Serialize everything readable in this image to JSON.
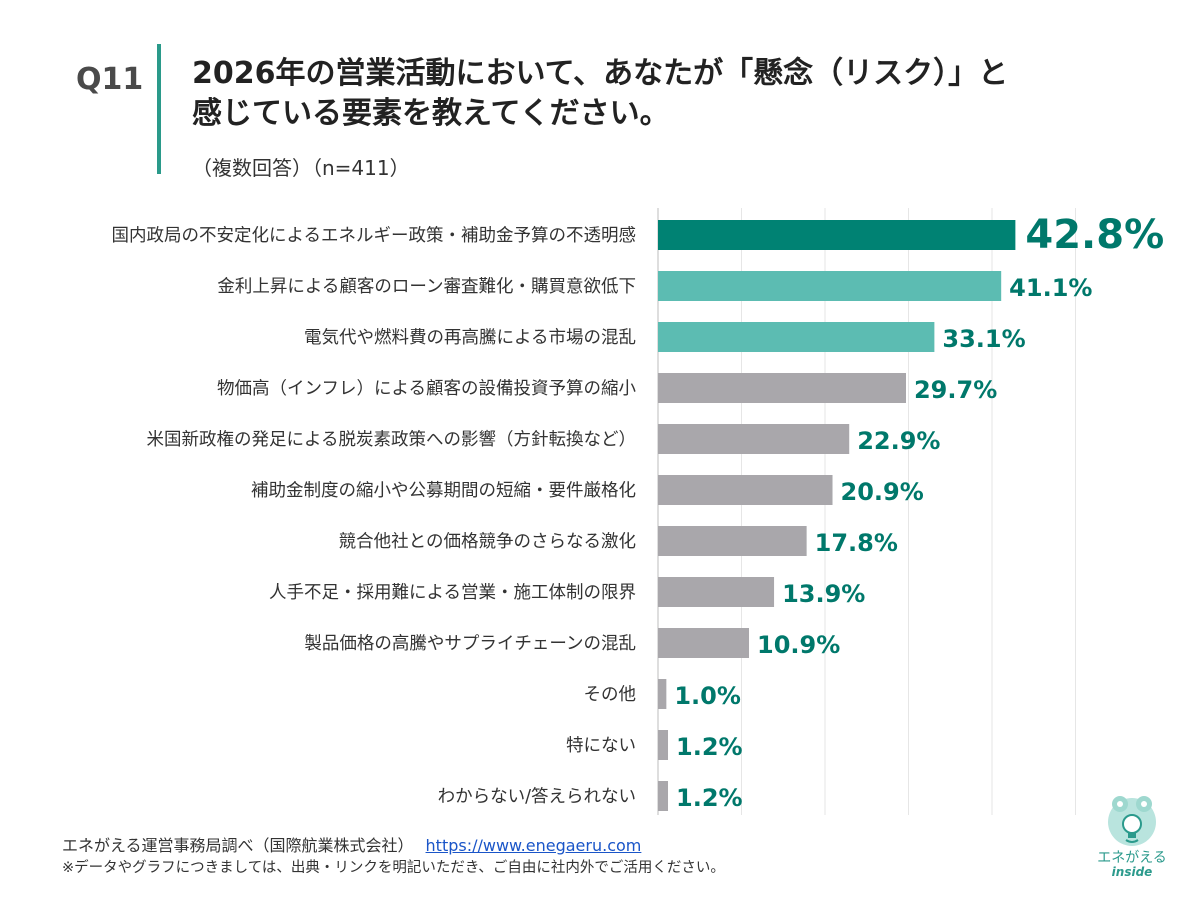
{
  "question": {
    "number": "Q11",
    "title_line1": "2026年の営業活動において、あなたが「懸念（リスク）」と",
    "title_line2": "感じている要素を教えてください。",
    "subtitle": "（複数回答）（n=411）"
  },
  "chart_data": {
    "type": "bar",
    "orientation": "horizontal",
    "unit": "%",
    "xlim": [
      0,
      50
    ],
    "grid": true,
    "categories": [
      "国内政局の不安定化によるエネルギー政策・補助金予算の不透明感",
      "金利上昇による顧客のローン審査難化・購買意欲低下",
      "電気代や燃料費の再高騰による市場の混乱",
      "物価高（インフレ）による顧客の設備投資予算の縮小",
      "米国新政権の発足による脱炭素政策への影響（方針転換など）",
      "補助金制度の縮小や公募期間の短縮・要件厳格化",
      "競合他社との価格競争のさらなる激化",
      "人手不足・採用難による営業・施工体制の限界",
      "製品価格の高騰やサプライチェーンの混乱",
      "その他",
      "特にない",
      "わからない/答えられない"
    ],
    "values": [
      42.8,
      41.1,
      33.1,
      29.7,
      22.9,
      20.9,
      17.8,
      13.9,
      10.9,
      1.0,
      1.2,
      1.2
    ],
    "value_labels": [
      "42.8%",
      "41.1%",
      "33.1%",
      "29.7%",
      "22.9%",
      "20.9%",
      "17.8%",
      "13.9%",
      "10.9%",
      "1.0%",
      "1.2%",
      "1.2%"
    ],
    "bar_colors": [
      "#008273",
      "#5cbcb2",
      "#5cbcb2",
      "#a9a7ab",
      "#a9a7ab",
      "#a9a7ab",
      "#a9a7ab",
      "#a9a7ab",
      "#a9a7ab",
      "#a9a7ab",
      "#a9a7ab",
      "#a9a7ab"
    ],
    "label_color": "#00786b"
  },
  "footer": {
    "source": "エネがえる運営事務局調べ（国際航業株式会社）",
    "url": "https://www.enegaeru.com",
    "note": "※データやグラフにつきましては、出典・リンクを明記いただき、ご自由に社内外でご活用ください。"
  },
  "logo": {
    "text": "エネがえる",
    "sub": "inside"
  }
}
